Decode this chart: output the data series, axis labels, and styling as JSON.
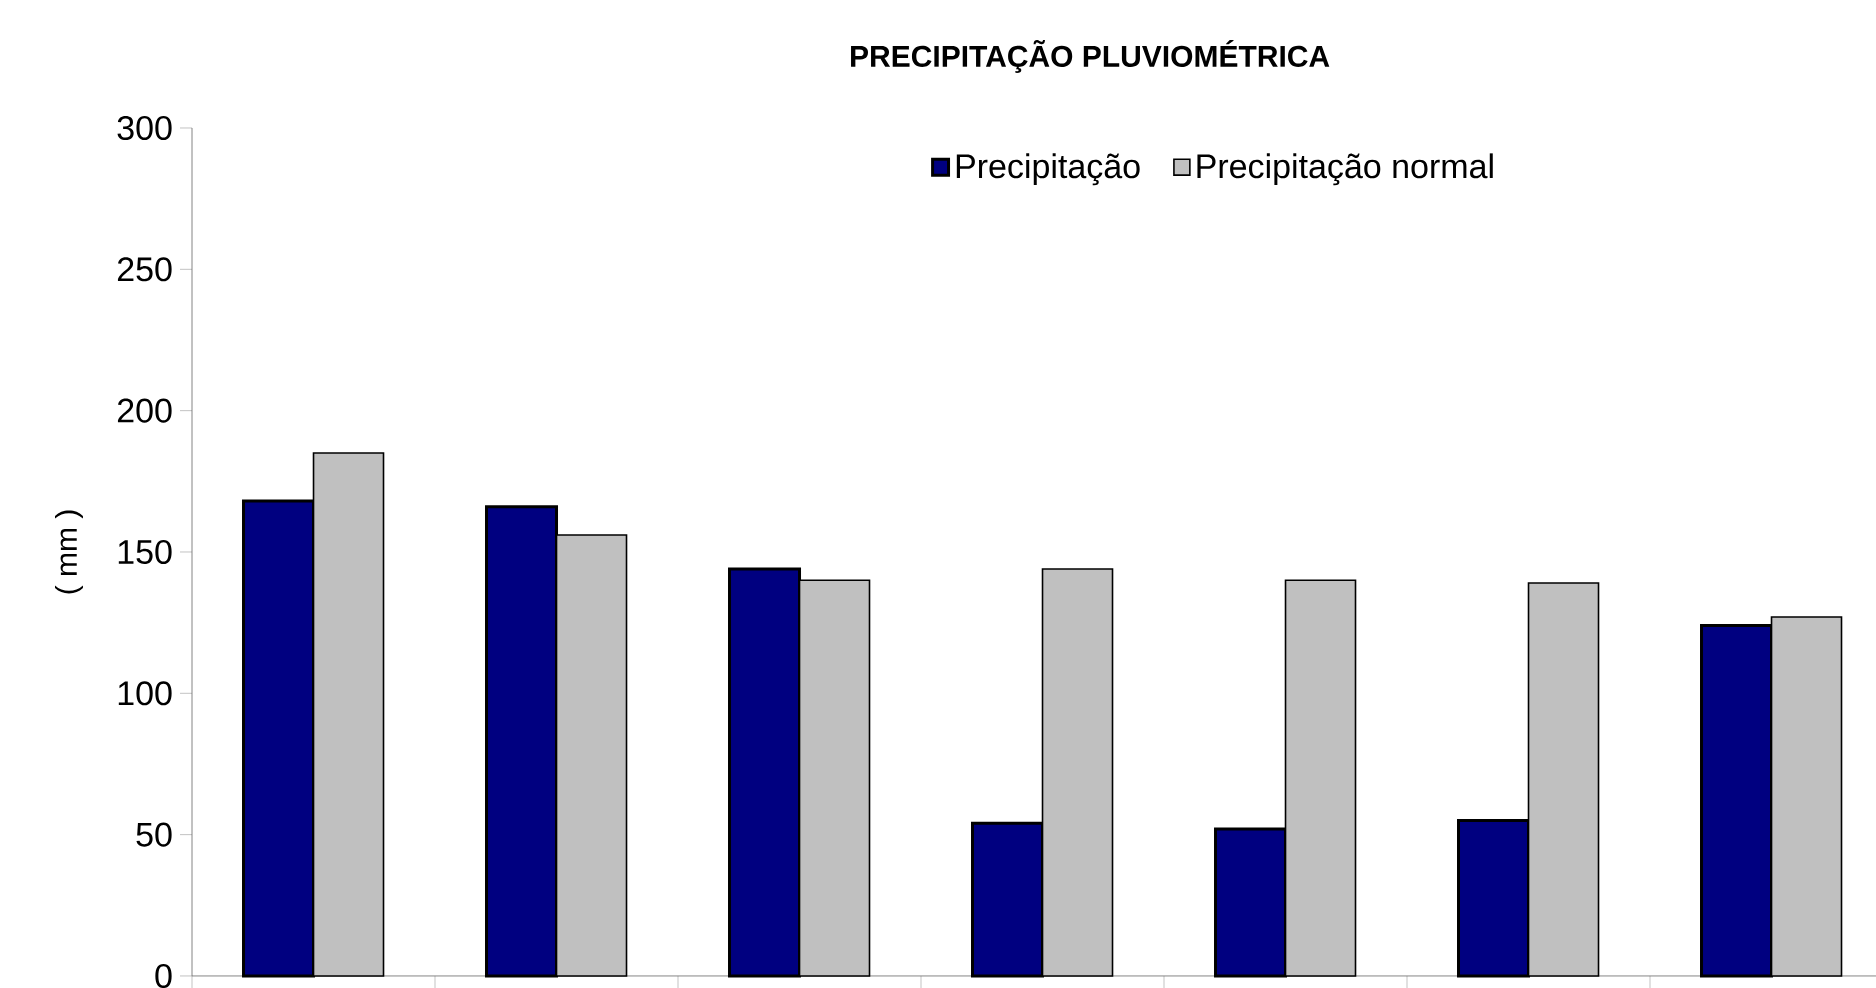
{
  "chart_data": {
    "type": "bar",
    "title": "PRECIPITAÇÃO PLUVIOMÉTRICA",
    "ylabel": "( mm )",
    "categories": [
      null,
      null,
      null,
      null,
      null,
      null,
      null
    ],
    "series": [
      {
        "name": "Precipitação",
        "color": "#000080",
        "values": [
          168,
          166,
          144,
          54,
          52,
          55,
          124
        ]
      },
      {
        "name": "Precipitação normal",
        "color": "#c0c0c0",
        "values": [
          185,
          156,
          140,
          144,
          140,
          139,
          127
        ]
      }
    ],
    "ylim": [
      0,
      300
    ],
    "yticks": [
      0,
      50,
      100,
      150,
      200,
      250,
      300
    ],
    "legend": "top right"
  }
}
